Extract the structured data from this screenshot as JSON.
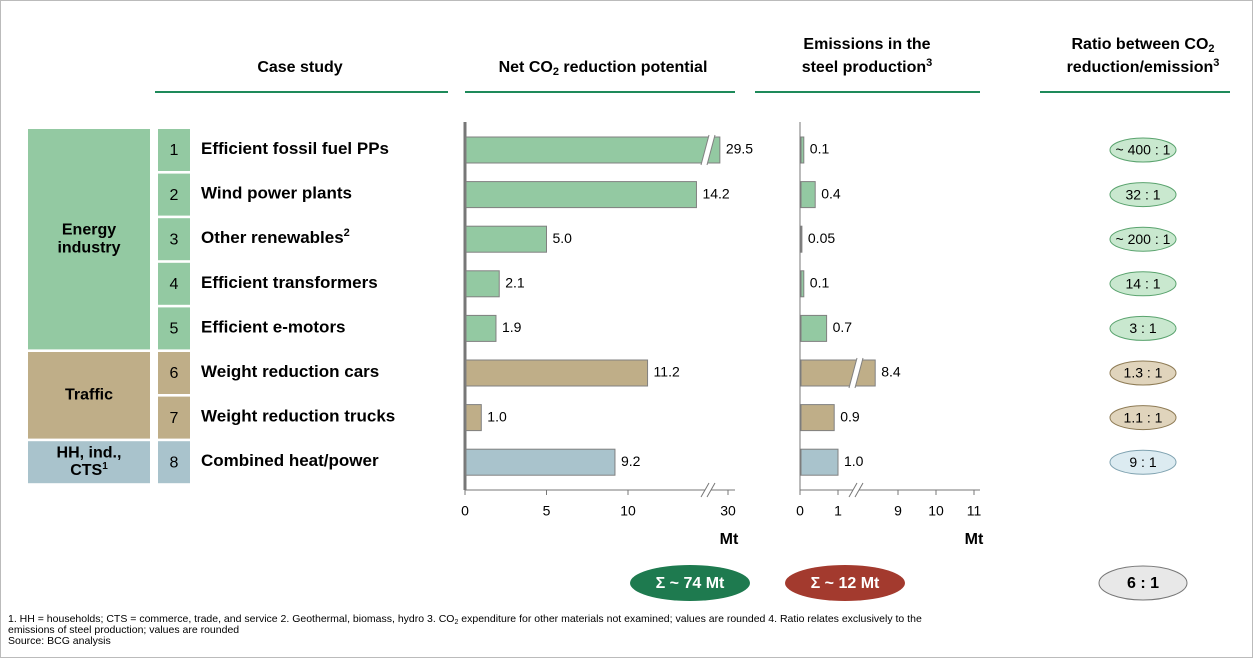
{
  "headers": {
    "case_study": "Case study",
    "reduction": [
      "Net CO",
      "2",
      " reduction potential"
    ],
    "emissions": [
      "Emissions in the",
      "steel production",
      "3"
    ],
    "ratio": [
      "Ratio between CO",
      "2",
      "reduction/emission",
      "3"
    ]
  },
  "groups": [
    {
      "label": [
        "Energy",
        "industry"
      ],
      "color": "#93c9a2",
      "oval_color": "#c9e8cf",
      "oval_stroke": "#5aa36e"
    },
    {
      "label": [
        "Traffic"
      ],
      "color": "#bfae88",
      "oval_color": "#e0d4bc",
      "oval_stroke": "#8e7b55"
    },
    {
      "label": [
        "HH, ind.,",
        "CTS",
        "1"
      ],
      "color": "#a9c3cc",
      "oval_color": "#dcebf1",
      "oval_stroke": "#7fa2b0"
    }
  ],
  "rows": [
    {
      "number": 1,
      "label": "Efficient fossil fuel PPs",
      "group": 0,
      "reduction": 29.5,
      "reduction_label": "29.5",
      "emission": 0.1,
      "emission_label": "0.1",
      "ratio": "~ 400 : 1"
    },
    {
      "number": 2,
      "label": "Wind power plants",
      "group": 0,
      "reduction": 14.2,
      "reduction_label": "14.2",
      "emission": 0.4,
      "emission_label": "0.4",
      "ratio": "32 : 1"
    },
    {
      "number": 3,
      "label": "Other renewables",
      "label_sup": "2",
      "group": 0,
      "reduction": 5,
      "reduction_label": "5.0",
      "emission": 0.05,
      "emission_label": "0.05",
      "ratio": "~ 200 : 1"
    },
    {
      "number": 4,
      "label": "Efficient transformers",
      "group": 0,
      "reduction": 2.1,
      "reduction_label": "2.1",
      "emission": 0.1,
      "emission_label": "0.1",
      "ratio": "14 : 1"
    },
    {
      "number": 5,
      "label": "Efficient e-motors",
      "group": 0,
      "reduction": 1.9,
      "reduction_label": "1.9",
      "emission": 0.7,
      "emission_label": "0.7",
      "ratio": "3 : 1"
    },
    {
      "number": 6,
      "label": "Weight reduction cars",
      "group": 1,
      "reduction": 11.2,
      "reduction_label": "11.2",
      "emission": 8.4,
      "emission_label": "8.4",
      "ratio": "1.3 : 1"
    },
    {
      "number": 7,
      "label": "Weight reduction trucks",
      "group": 1,
      "reduction": 1,
      "reduction_label": "1.0",
      "emission": 0.9,
      "emission_label": "0.9",
      "ratio": "1.1 : 1"
    },
    {
      "number": 8,
      "label": "Combined heat/power",
      "group": 2,
      "reduction": 9.2,
      "reduction_label": "9.2",
      "emission": 1,
      "emission_label": "1.0",
      "ratio": "9 : 1"
    }
  ],
  "reduction_axis": {
    "ticks": [
      0,
      5,
      10,
      30
    ],
    "unit": "Mt"
  },
  "emission_axis": {
    "ticks": [
      0,
      1,
      9,
      10,
      11
    ],
    "unit": "Mt"
  },
  "totals": {
    "reduction": "Σ ~ 74 Mt",
    "reduction_color": "#1e7a4f",
    "emission": "Σ ~ 12 Mt",
    "emission_color": "#a33a2e",
    "ratio": "6 : 1"
  },
  "footnotes": [
    [
      "1. HH = households; CTS = commerce, trade, and service  2. Geothermal, biomass, hydro  3. CO",
      "2",
      " expenditure for other materials not examined; values are rounded  4. Ratio relates exclusively to the"
    ],
    [
      "emissions of steel production; values are rounded"
    ],
    [
      "Source: BCG analysis"
    ]
  ]
}
